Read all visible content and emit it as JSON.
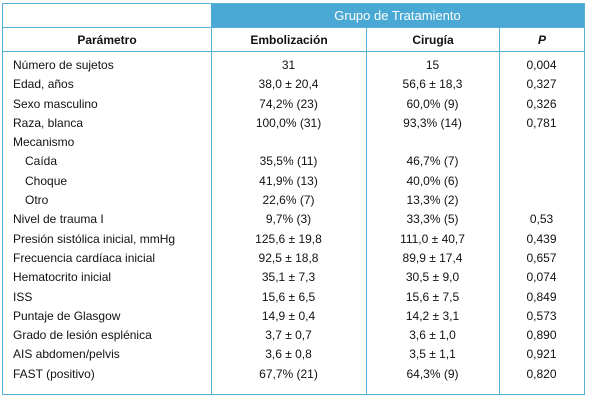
{
  "table": {
    "group_header": "Grupo de Tratamiento",
    "columns": [
      "Parámetro",
      "Embolización",
      "Cirugía",
      "P"
    ],
    "rows": [
      {
        "param": "Número de sujetos",
        "emb": "31",
        "cir": "15",
        "p": "0,004",
        "indent": false
      },
      {
        "param": "Edad, años",
        "emb": "38,0 ± 20,4",
        "cir": "56,6 ± 18,3",
        "p": "0,327",
        "indent": false
      },
      {
        "param": "Sexo masculino",
        "emb": "74,2% (23)",
        "cir": "60,0% (9)",
        "p": "0,326",
        "indent": false
      },
      {
        "param": "Raza,  blanca",
        "emb": "100,0% (31)",
        "cir": "93,3% (14)",
        "p": "0,781",
        "indent": false
      },
      {
        "param": "Mecanismo",
        "emb": "",
        "cir": "",
        "p": "",
        "indent": false
      },
      {
        "param": "Caída",
        "emb": "35,5% (11)",
        "cir": "46,7% (7)",
        "p": "",
        "indent": true
      },
      {
        "param": "Choque",
        "emb": "41,9% (13)",
        "cir": "40,0% (6)",
        "p": "",
        "indent": true
      },
      {
        "param": "Otro",
        "emb": "22,6% (7)",
        "cir": "13,3% (2)",
        "p": "",
        "indent": true
      },
      {
        "param": "Nivel de trauma I",
        "emb": "9,7% (3)",
        "cir": "33,3% (5)",
        "p": "0,53",
        "indent": false
      },
      {
        "param": "Presión sistólica inicial, mmHg",
        "emb": "125,6 ± 19,8",
        "cir": "111,0 ± 40,7",
        "p": "0,439",
        "indent": false
      },
      {
        "param": "Frecuencia  cardíaca inicial",
        "emb": "92,5 ± 18,8",
        "cir": "89,9 ± 17,4",
        "p": "0,657",
        "indent": false
      },
      {
        "param": "Hematocrito inicial",
        "emb": "35,1 ± 7,3",
        "cir": "30,5 ± 9,0",
        "p": "0,074",
        "indent": false
      },
      {
        "param": "ISS",
        "emb": "15,6 ± 6,5",
        "cir": "15,6 ± 7,5",
        "p": "0,849",
        "indent": false
      },
      {
        "param": "Puntaje de Glasgow",
        "emb": "14,9 ± 0,4",
        "cir": "14,2 ± 3,1",
        "p": "0,573",
        "indent": false
      },
      {
        "param": "Grado de lesión esplénica",
        "emb": "3,7 ± 0,7",
        "cir": "3,6 ± 1,0",
        "p": "0,890",
        "indent": false
      },
      {
        "param": "AIS abdomen/pelvis",
        "emb": "3,6 ± 0,8",
        "cir": "3,5 ± 1,1",
        "p": "0,921",
        "indent": false
      },
      {
        "param": "FAST (positivo)",
        "emb": "67,7% (21)",
        "cir": "64,3% (9)",
        "p": "0,820",
        "indent": false
      }
    ]
  }
}
